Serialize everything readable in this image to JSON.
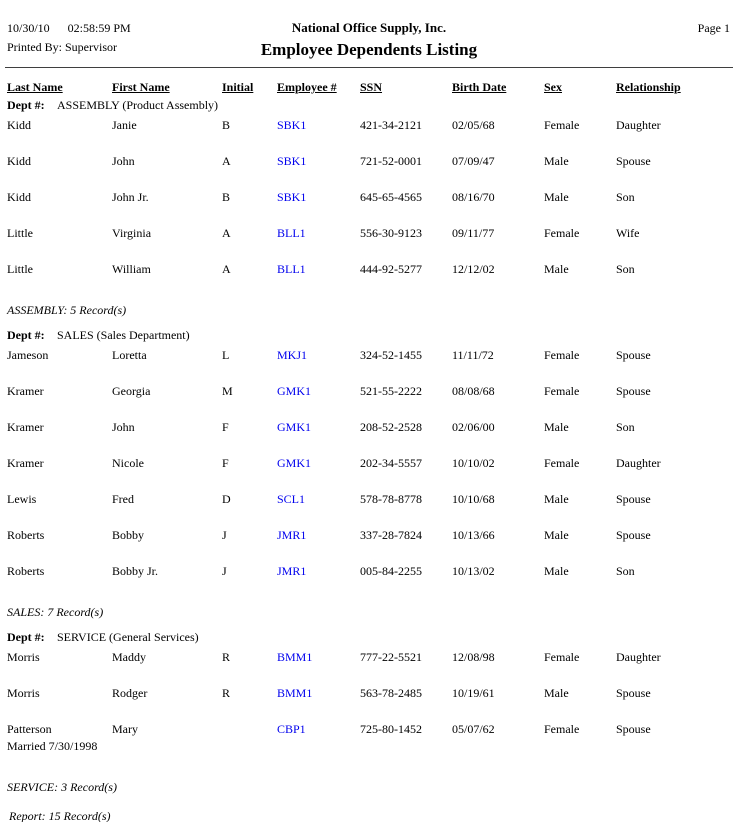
{
  "page": {
    "printed_date": "10/30/10",
    "printed_time": "02:58:59 PM",
    "printed_by": "Printed By: Supervisor",
    "company": "National Office Supply, Inc.",
    "report_title": "Employee Dependents Listing",
    "page_label": "Page 1"
  },
  "columns": [
    "Last Name",
    "First Name",
    "Initial",
    "Employee #",
    "SSN",
    "Birth Date",
    "Sex",
    "Relationship"
  ],
  "dept_label": "Dept #:",
  "sections": [
    {
      "dept": "ASSEMBLY (Product Assembly)",
      "summary": "ASSEMBLY: 5 Record(s)",
      "rows": [
        {
          "last_name": "Kidd",
          "first_name": "Janie",
          "initial": "B",
          "employee_num": "SBK1",
          "ssn": "421-34-2121",
          "birth_date": "02/05/68",
          "sex": "Female",
          "relationship": "Daughter",
          "note": ""
        },
        {
          "last_name": "Kidd",
          "first_name": "John",
          "initial": "A",
          "employee_num": "SBK1",
          "ssn": "721-52-0001",
          "birth_date": "07/09/47",
          "sex": "Male",
          "relationship": "Spouse",
          "note": ""
        },
        {
          "last_name": "Kidd",
          "first_name": "John Jr.",
          "initial": "B",
          "employee_num": "SBK1",
          "ssn": "645-65-4565",
          "birth_date": "08/16/70",
          "sex": "Male",
          "relationship": "Son",
          "note": ""
        },
        {
          "last_name": "Little",
          "first_name": "Virginia",
          "initial": "A",
          "employee_num": "BLL1",
          "ssn": "556-30-9123",
          "birth_date": "09/11/77",
          "sex": "Female",
          "relationship": "Wife",
          "note": ""
        },
        {
          "last_name": "Little",
          "first_name": "William",
          "initial": "A",
          "employee_num": "BLL1",
          "ssn": "444-92-5277",
          "birth_date": "12/12/02",
          "sex": "Male",
          "relationship": "Son",
          "note": ""
        }
      ]
    },
    {
      "dept": "SALES (Sales Department)",
      "summary": "SALES: 7 Record(s)",
      "rows": [
        {
          "last_name": "Jameson",
          "first_name": "Loretta",
          "initial": "L",
          "employee_num": "MKJ1",
          "ssn": "324-52-1455",
          "birth_date": "11/11/72",
          "sex": "Female",
          "relationship": "Spouse",
          "note": ""
        },
        {
          "last_name": "Kramer",
          "first_name": "Georgia",
          "initial": "M",
          "employee_num": "GMK1",
          "ssn": "521-55-2222",
          "birth_date": "08/08/68",
          "sex": "Female",
          "relationship": "Spouse",
          "note": ""
        },
        {
          "last_name": "Kramer",
          "first_name": "John",
          "initial": "F",
          "employee_num": "GMK1",
          "ssn": "208-52-2528",
          "birth_date": "02/06/00",
          "sex": "Male",
          "relationship": "Son",
          "note": ""
        },
        {
          "last_name": "Kramer",
          "first_name": "Nicole",
          "initial": "F",
          "employee_num": "GMK1",
          "ssn": "202-34-5557",
          "birth_date": "10/10/02",
          "sex": "Female",
          "relationship": "Daughter",
          "note": ""
        },
        {
          "last_name": "Lewis",
          "first_name": "Fred",
          "initial": "D",
          "employee_num": "SCL1",
          "ssn": "578-78-8778",
          "birth_date": "10/10/68",
          "sex": "Male",
          "relationship": "Spouse",
          "note": ""
        },
        {
          "last_name": "Roberts",
          "first_name": "Bobby",
          "initial": "J",
          "employee_num": "JMR1",
          "ssn": "337-28-7824",
          "birth_date": "10/13/66",
          "sex": "Male",
          "relationship": "Spouse",
          "note": ""
        },
        {
          "last_name": "Roberts",
          "first_name": "Bobby Jr.",
          "initial": "J",
          "employee_num": "JMR1",
          "ssn": "005-84-2255",
          "birth_date": "10/13/02",
          "sex": "Male",
          "relationship": "Son",
          "note": ""
        }
      ]
    },
    {
      "dept": "SERVICE (General Services)",
      "summary": "SERVICE: 3 Record(s)",
      "rows": [
        {
          "last_name": "Morris",
          "first_name": "Maddy",
          "initial": "R",
          "employee_num": "BMM1",
          "ssn": "777-22-5521",
          "birth_date": "12/08/98",
          "sex": "Female",
          "relationship": "Daughter",
          "note": ""
        },
        {
          "last_name": "Morris",
          "first_name": "Rodger",
          "initial": "R",
          "employee_num": "BMM1",
          "ssn": "563-78-2485",
          "birth_date": "10/19/61",
          "sex": "Male",
          "relationship": "Spouse",
          "note": ""
        },
        {
          "last_name": "Patterson",
          "first_name": "Mary",
          "initial": "",
          "employee_num": "CBP1",
          "ssn": "725-80-1452",
          "birth_date": "05/07/62",
          "sex": "Female",
          "relationship": "Spouse",
          "note": "Married 7/30/1998"
        }
      ]
    }
  ],
  "report_summary": "Report: 15 Record(s)",
  "colors": {
    "employee_link": "#0000EE",
    "rule": "#3f3f3f"
  }
}
